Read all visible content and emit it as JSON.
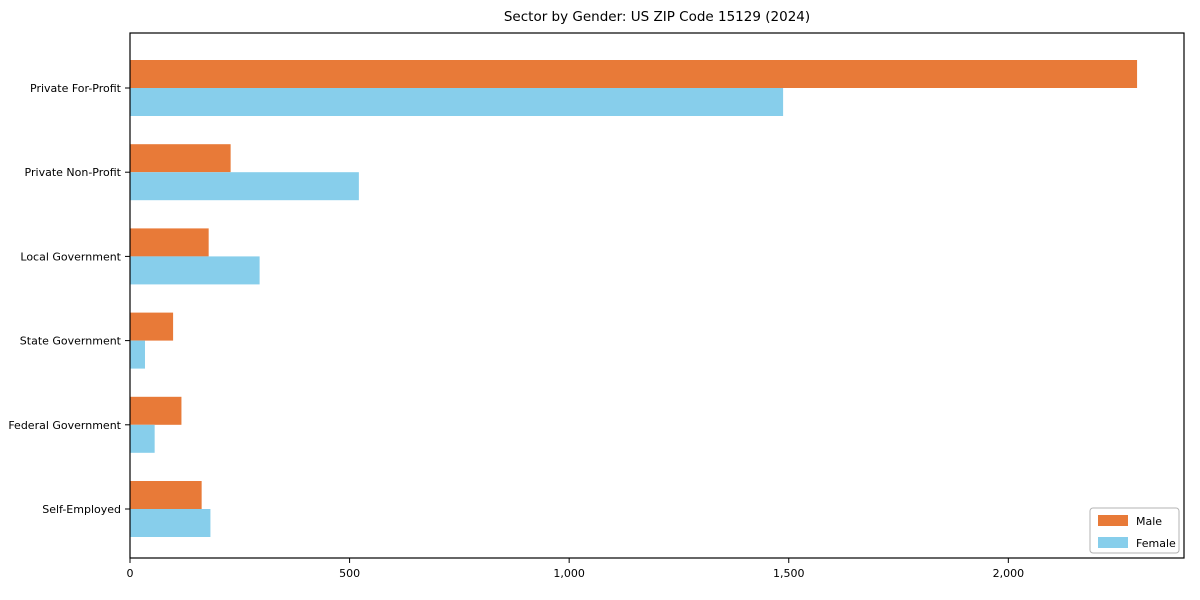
{
  "figure": {
    "title": "Sector by Gender: US ZIP Code 15129 (2024)"
  },
  "chart_data": {
    "type": "bar",
    "orientation": "horizontal",
    "title": "Sector by Gender: US ZIP Code 15129 (2024)",
    "categories": [
      "Private For-Profit",
      "Private Non-Profit",
      "Local Government",
      "State Government",
      "Federal Government",
      "Self-Employed"
    ],
    "series": [
      {
        "name": "Male",
        "color": "#E87A38",
        "values": [
          2292,
          228,
          178,
          97,
          116,
          162
        ]
      },
      {
        "name": "Female",
        "color": "#87CEEB",
        "values": [
          1486,
          520,
          294,
          33,
          55,
          182
        ]
      }
    ],
    "xlabel": "",
    "ylabel": "",
    "xlim": [
      0,
      2400
    ],
    "xticks": [
      0,
      500,
      1000,
      1500,
      2000
    ],
    "xtick_labels": [
      "0",
      "500",
      "1,000",
      "1,500",
      "2,000"
    ],
    "grid": false,
    "legend": {
      "position": "lower right",
      "entries": [
        "Male",
        "Female"
      ]
    },
    "colors": {
      "spine": "#000000",
      "tick": "#000000",
      "text": "#000000",
      "legend_border": "#b3b3b3",
      "legend_background": "#ffffff"
    }
  }
}
